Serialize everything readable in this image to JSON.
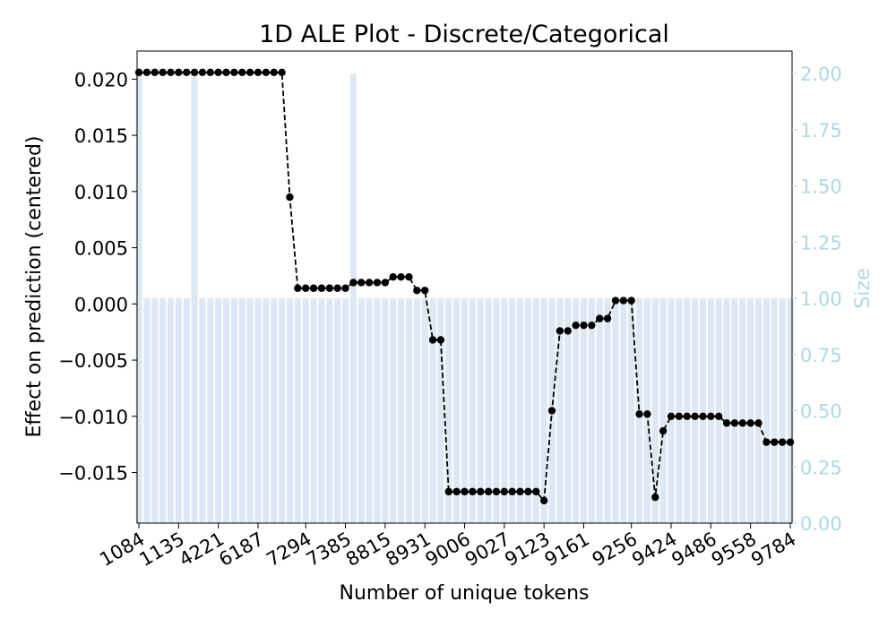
{
  "chart_data": {
    "type": "line",
    "title": "1D ALE Plot - Discrete/Categorical",
    "xlabel": "Number of unique tokens",
    "ylabel": "Effect on prediction (centered)",
    "ylabel_right": "Size",
    "ylim": [
      -0.0195,
      0.0225
    ],
    "ylim_right": [
      0,
      2.1
    ],
    "yticks": [
      -0.015,
      -0.01,
      -0.005,
      0.0,
      0.005,
      0.01,
      0.015,
      0.02
    ],
    "yticks_right": [
      0.0,
      0.25,
      0.5,
      0.75,
      1.0,
      1.25,
      1.5,
      1.75,
      2.0
    ],
    "xtick_labels": [
      "1084",
      "1135",
      "4221",
      "6187",
      "7294",
      "7385",
      "8815",
      "8931",
      "9006",
      "9027",
      "9123",
      "9161",
      "9256",
      "9424",
      "9486",
      "9558",
      "9784"
    ],
    "colors": {
      "line": "#000000",
      "bars": "#dde8f4",
      "right_axis": "#add8e6"
    },
    "grid": false,
    "series": [
      {
        "values": [
          0.0206,
          0.0206,
          0.0206,
          0.0206,
          0.0206,
          0.0206,
          0.0206,
          0.0206,
          0.0206,
          0.0206,
          0.0206,
          0.0206,
          0.0206,
          0.0206,
          0.0206,
          0.0206,
          0.0206,
          0.0206,
          0.0206,
          0.0095,
          0.0014,
          0.0014,
          0.0014,
          0.0014,
          0.0014,
          0.0014,
          0.0014,
          0.0019,
          0.0019,
          0.0019,
          0.0019,
          0.0019,
          0.0024,
          0.0024,
          0.0024,
          0.0012,
          0.0012,
          -0.0032,
          -0.0032,
          -0.0167,
          -0.0167,
          -0.0167,
          -0.0167,
          -0.0167,
          -0.0167,
          -0.0167,
          -0.0167,
          -0.0167,
          -0.0167,
          -0.0167,
          -0.0167,
          -0.0175,
          -0.0095,
          -0.0024,
          -0.0024,
          -0.0019,
          -0.0019,
          -0.0019,
          -0.0013,
          -0.0013,
          0.0003,
          0.0003,
          0.0003,
          -0.0098,
          -0.0098,
          -0.0172,
          -0.0113,
          -0.01,
          -0.01,
          -0.01,
          -0.01,
          -0.01,
          -0.01,
          -0.01,
          -0.0106,
          -0.0106,
          -0.0106,
          -0.0106,
          -0.0106,
          -0.0123,
          -0.0123,
          -0.0123,
          -0.0123
        ]
      },
      {
        "name": "Size",
        "type": "bar",
        "values": [
          2,
          1,
          1,
          1,
          1,
          1,
          1,
          2,
          1,
          1,
          1,
          1,
          1,
          1,
          1,
          1,
          1,
          1,
          1,
          1,
          1,
          1,
          1,
          1,
          1,
          1,
          1,
          2,
          1,
          1,
          1,
          1,
          1,
          1,
          1,
          1,
          1,
          1,
          1,
          1,
          1,
          1,
          1,
          1,
          1,
          1,
          1,
          1,
          1,
          1,
          1,
          1,
          1,
          1,
          1,
          1,
          1,
          1,
          1,
          1,
          1,
          1,
          1,
          1,
          1,
          1,
          1,
          1,
          1,
          1,
          1,
          1,
          1,
          1,
          1,
          1,
          1,
          1,
          1,
          1,
          1,
          1,
          1
        ]
      }
    ]
  }
}
